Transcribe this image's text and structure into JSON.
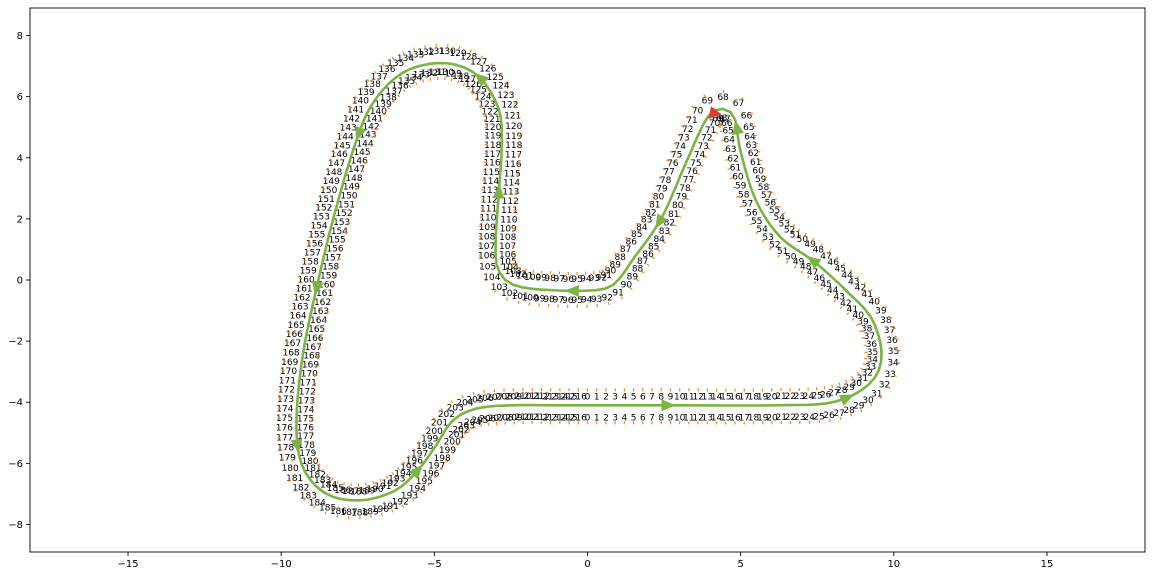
{
  "chart_data": {
    "type": "line",
    "title": "",
    "xlabel": "",
    "ylabel": "",
    "xlim": [
      -18.2,
      18.2
    ],
    "ylim": [
      -8.9,
      8.9
    ],
    "xticks": [
      -15,
      -10,
      -5,
      0,
      5,
      10,
      15
    ],
    "yticks": [
      -8,
      -6,
      -4,
      -2,
      0,
      2,
      4,
      6,
      8
    ],
    "grid": false,
    "legend": "none",
    "colors": {
      "centerline": "#7cb342",
      "boundary_ticks": "#ff7f0e",
      "start_marker": "#e53935"
    },
    "track_waypoints": [
      [
        0.0,
        -4.1
      ],
      [
        3.0,
        -4.1
      ],
      [
        6.0,
        -4.1
      ],
      [
        8.0,
        -4.0
      ],
      [
        9.2,
        -3.4
      ],
      [
        9.6,
        -2.5
      ],
      [
        9.3,
        -1.3
      ],
      [
        8.5,
        -0.4
      ],
      [
        7.4,
        0.6
      ],
      [
        6.3,
        1.4
      ],
      [
        5.5,
        2.6
      ],
      [
        5.0,
        4.2
      ],
      [
        4.8,
        5.3
      ],
      [
        4.4,
        5.6
      ],
      [
        3.9,
        5.3
      ],
      [
        3.2,
        3.8
      ],
      [
        2.4,
        2.0
      ],
      [
        1.5,
        0.7
      ],
      [
        1.0,
        0.0
      ],
      [
        0.5,
        -0.3
      ],
      [
        -0.8,
        -0.35
      ],
      [
        -2.3,
        -0.2
      ],
      [
        -2.9,
        0.3
      ],
      [
        -3.0,
        1.2
      ],
      [
        -2.9,
        2.8
      ],
      [
        -2.8,
        4.4
      ],
      [
        -2.9,
        5.6
      ],
      [
        -3.6,
        6.7
      ],
      [
        -4.7,
        7.1
      ],
      [
        -6.0,
        6.8
      ],
      [
        -7.0,
        5.8
      ],
      [
        -7.6,
        4.4
      ],
      [
        -8.3,
        2.0
      ],
      [
        -8.9,
        -0.5
      ],
      [
        -9.3,
        -2.5
      ],
      [
        -9.5,
        -4.5
      ],
      [
        -9.4,
        -5.8
      ],
      [
        -9.0,
        -6.6
      ],
      [
        -8.3,
        -7.1
      ],
      [
        -7.3,
        -7.2
      ],
      [
        -6.3,
        -6.9
      ],
      [
        -5.6,
        -6.3
      ],
      [
        -5.0,
        -5.5
      ],
      [
        -4.4,
        -4.6
      ],
      [
        -3.6,
        -4.2
      ],
      [
        -2.4,
        -4.1
      ],
      [
        -1.0,
        -4.1
      ],
      [
        0.0,
        -4.1
      ]
    ],
    "closed_loop": true,
    "point_labels_start": 0,
    "point_labels_end": 216,
    "direction_arrows_at": [
      0.04,
      0.13,
      0.22,
      0.3,
      0.38,
      0.44,
      0.52,
      0.58,
      0.66,
      0.74,
      0.82,
      0.9
    ],
    "start_marker_at": [
      4.1,
      5.5
    ]
  }
}
